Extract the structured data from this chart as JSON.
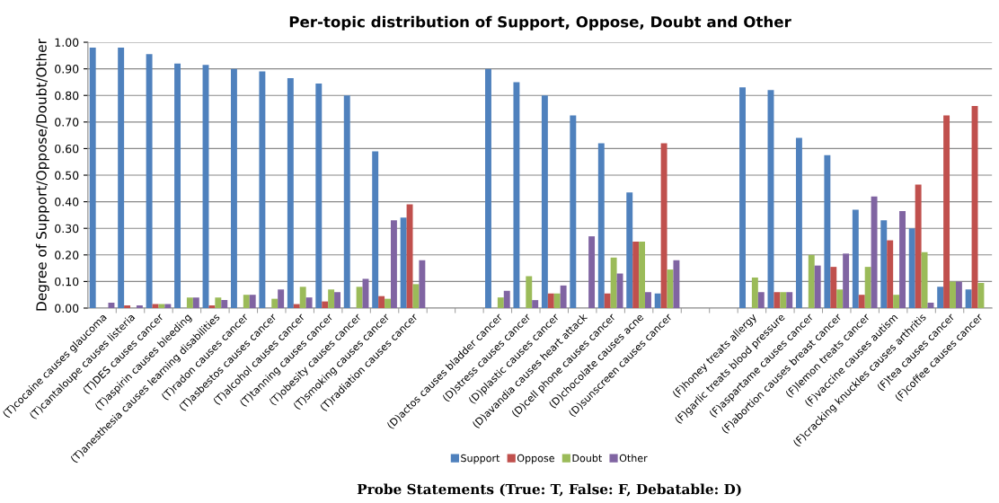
{
  "chart_data": {
    "type": "bar",
    "title": "Per-topic distribution of Support, Oppose, Doubt and Other",
    "xlabel": "Probe Statements (True: T, False: F, Debatable: D)",
    "ylabel": "Degree of Support/Oppose/Doubt/Other",
    "categories": [
      "(T)cocaine causes glaucoma",
      "(T)cantaloupe causes listeria",
      "(T)DES causes cancer",
      "(T)aspirin causes bleeding",
      "(T)anesthesia causes learning disabilities",
      "(T)radon causes cancer",
      "(T)asbestos causes cancer",
      "(T)alcohol causes cancer",
      "(T)tanning causes cancer",
      "(T)obesity causes cancer",
      "(T)smoking causes cancer",
      "(T)radiation causes cancer",
      null,
      null,
      "(D)actos causes bladder cancer",
      "(D)stress causes cancer",
      "(D)plastic causes cancer",
      "(D)avandia causes heart attack",
      "(D)cell phone causes cancer",
      "(D)chocolate causes acne",
      "(D)sunscreen causes cancer",
      null,
      null,
      "(F)honey treats allergy",
      "(F)garlic treats blood pressure",
      "(F)aspartame causes cancer",
      "(F)abortion causes breast cancer",
      "(F)lemon treats cancer",
      "(F)vaccine causes autism",
      "(F)cracking knuckles causes arthritis",
      "(F)tea causes cancer",
      "(F)coffee causes cancer"
    ],
    "series": [
      {
        "name": "Support",
        "color": "#4f81bd",
        "values": [
          0.98,
          0.98,
          0.955,
          0.92,
          0.915,
          0.9,
          0.89,
          0.865,
          0.845,
          0.8,
          0.59,
          0.34,
          null,
          null,
          0.9,
          0.85,
          0.8,
          0.725,
          0.62,
          0.435,
          0.055,
          null,
          null,
          0.83,
          0.82,
          0.64,
          0.575,
          0.37,
          0.33,
          0.3,
          0.08,
          0.07
        ]
      },
      {
        "name": "Oppose",
        "color": "#c0504d",
        "values": [
          0,
          0.01,
          0.015,
          0,
          0.01,
          0,
          0,
          0.015,
          0.025,
          0,
          0.045,
          0.39,
          null,
          null,
          0,
          0,
          0.055,
          0,
          0.055,
          0.25,
          0.62,
          null,
          null,
          0,
          0.06,
          0,
          0.155,
          0.05,
          0.255,
          0.465,
          0.725,
          0.76
        ]
      },
      {
        "name": "Doubt",
        "color": "#9bbb59",
        "values": [
          0,
          0,
          0.015,
          0.04,
          0.04,
          0.05,
          0.035,
          0.08,
          0.07,
          0.08,
          0.035,
          0.09,
          null,
          null,
          0.04,
          0.12,
          0.055,
          0,
          0.19,
          0.25,
          0.145,
          null,
          null,
          0.115,
          0.06,
          0.2,
          0.07,
          0.155,
          0.05,
          0.21,
          0.1,
          0.095
        ]
      },
      {
        "name": "Other",
        "color": "#8064a2",
        "values": [
          0.02,
          0.01,
          0.015,
          0.04,
          0.03,
          0.05,
          0.07,
          0.04,
          0.06,
          0.11,
          0.33,
          0.18,
          null,
          null,
          0.065,
          0.03,
          0.085,
          0.27,
          0.13,
          0.06,
          0.18,
          null,
          null,
          0.06,
          0.06,
          0.16,
          0.205,
          0.42,
          0.365,
          0.02,
          0.1,
          null
        ]
      }
    ],
    "ylim": [
      0,
      1.0
    ],
    "yticks": [
      {
        "value": 0,
        "label": "0.00"
      },
      {
        "value": 0.1,
        "label": "0.10"
      },
      {
        "value": 0.2,
        "label": "0.20"
      },
      {
        "value": 0.3,
        "label": "0.30"
      },
      {
        "value": 0.4,
        "label": "0.40"
      },
      {
        "value": 0.5,
        "label": "0.50"
      },
      {
        "value": 0.6,
        "label": "0.60"
      },
      {
        "value": 0.7,
        "label": "0.70"
      },
      {
        "value": 0.8,
        "label": "0.80"
      },
      {
        "value": 0.9,
        "label": "0.90"
      },
      {
        "value": 1.0,
        "label": "1.00"
      }
    ],
    "grid": "y",
    "legend": "bottom"
  }
}
